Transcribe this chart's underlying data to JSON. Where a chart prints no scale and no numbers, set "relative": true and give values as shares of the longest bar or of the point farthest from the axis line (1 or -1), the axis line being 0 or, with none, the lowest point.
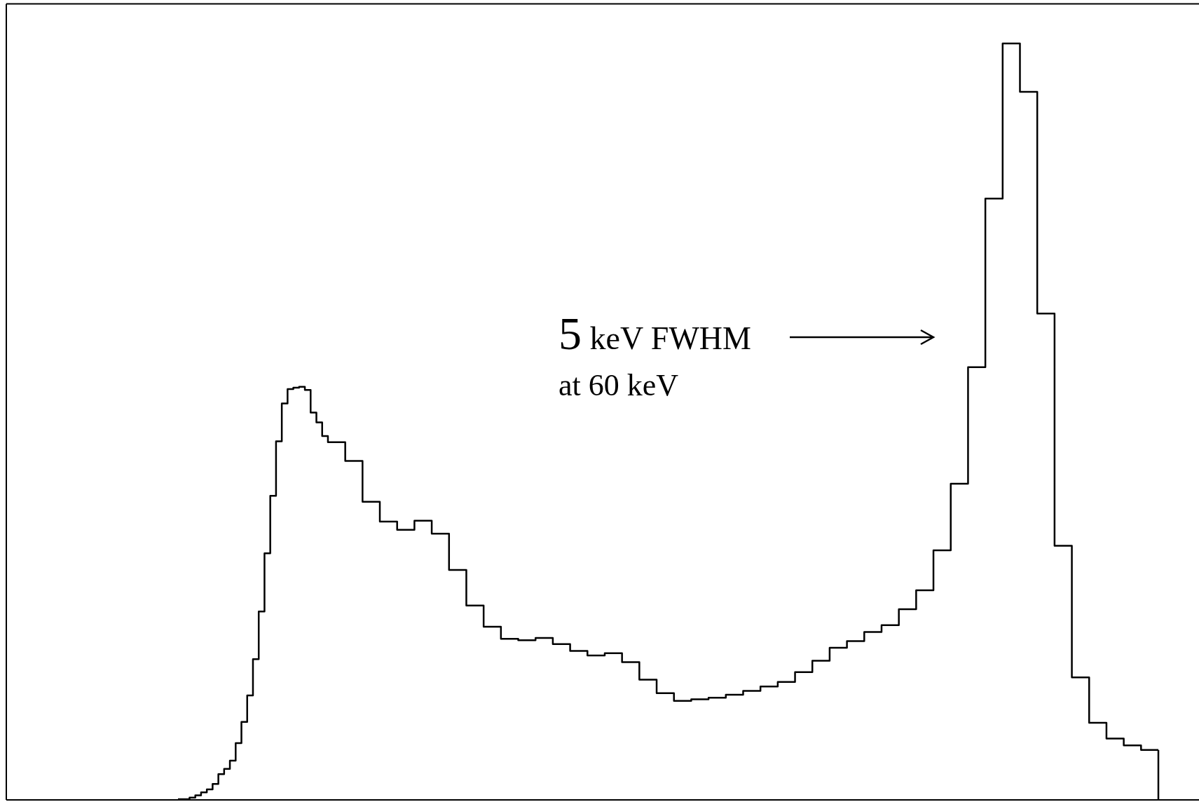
{
  "chart_data": {
    "type": "step",
    "relative": true,
    "color": "#000000",
    "categories": [
      null,
      null,
      null,
      null,
      null,
      null,
      null,
      null,
      null,
      null,
      null,
      null,
      null,
      null,
      null,
      null,
      null,
      null,
      null,
      null,
      null,
      null,
      null,
      null,
      null,
      null,
      null,
      null,
      null,
      null,
      null,
      null,
      null,
      null,
      null,
      null,
      null,
      null,
      null,
      null,
      null,
      null,
      null,
      null,
      null,
      null,
      null,
      null,
      null,
      null,
      null,
      null,
      null,
      null,
      null,
      null,
      null,
      null,
      null,
      null,
      null,
      null,
      null,
      null,
      null,
      null,
      null,
      null,
      null,
      null,
      null,
      null,
      null,
      null,
      null,
      null,
      null,
      null,
      null,
      null,
      null,
      null,
      null,
      null,
      null,
      null,
      null,
      null,
      null,
      null,
      null,
      null,
      null,
      null,
      null,
      null,
      null,
      null,
      null,
      null,
      null,
      null,
      null,
      null,
      null,
      null,
      null,
      null,
      null,
      null,
      null,
      null,
      null,
      null,
      null,
      null,
      null,
      null,
      null,
      null,
      null,
      null,
      null,
      null,
      null,
      null,
      null,
      null,
      null,
      null,
      null,
      null,
      null,
      null,
      null,
      null,
      null,
      null,
      null,
      null,
      null,
      null,
      null,
      null,
      null,
      null,
      null,
      null,
      null,
      null,
      null,
      null,
      null,
      null,
      null,
      null,
      null,
      null,
      null,
      null,
      null,
      null,
      null,
      null,
      null,
      null,
      null,
      null,
      null,
      null
    ],
    "values": [
      0.001,
      0.001,
      0.003,
      0.006,
      0.01,
      0.014,
      0.021,
      0.034,
      0.041,
      0.052,
      0.075,
      0.103,
      0.138,
      0.186,
      0.249,
      0.326,
      0.402,
      0.474,
      0.524,
      0.543,
      0.545,
      0.546,
      0.542,
      0.512,
      0.499,
      0.481,
      0.473,
      0.473,
      0.473,
      0.448,
      0.448,
      0.448,
      0.394,
      0.394,
      0.394,
      0.368,
      0.368,
      0.368,
      0.357,
      0.357,
      0.357,
      0.369,
      0.369,
      0.369,
      0.352,
      0.352,
      0.352,
      0.304,
      0.304,
      0.304,
      0.257,
      0.257,
      0.257,
      0.229,
      0.229,
      0.229,
      0.213,
      0.213,
      0.213,
      0.211,
      0.211,
      0.211,
      0.214,
      0.214,
      0.214,
      0.206,
      0.206,
      0.206,
      0.197,
      0.197,
      0.197,
      0.191,
      0.191,
      0.191,
      0.194,
      0.194,
      0.194,
      0.182,
      0.182,
      0.182,
      0.159,
      0.159,
      0.159,
      0.141,
      0.141,
      0.141,
      0.131,
      0.131,
      0.131,
      0.133,
      0.133,
      0.133,
      0.135,
      0.135,
      0.135,
      0.139,
      0.139,
      0.139,
      0.144,
      0.144,
      0.144,
      0.15,
      0.15,
      0.15,
      0.156,
      0.156,
      0.156,
      0.169,
      0.169,
      0.169,
      0.184,
      0.184,
      0.184,
      0.201,
      0.201,
      0.201,
      0.21,
      0.21,
      0.21,
      0.222,
      0.222,
      0.222,
      0.231,
      0.231,
      0.231,
      0.252,
      0.252,
      0.252,
      0.277,
      0.277,
      0.277,
      0.33,
      0.33,
      0.33,
      0.418,
      0.418,
      0.418,
      0.572,
      0.572,
      0.572,
      0.795,
      0.795,
      0.795,
      1,
      1,
      1,
      0.936,
      0.936,
      0.936,
      0.643,
      0.643,
      0.643,
      0.336,
      0.336,
      0.336,
      0.162,
      0.162,
      0.162,
      0.102,
      0.102,
      0.102,
      0.081,
      0.081,
      0.081,
      0.072,
      0.072,
      0.072,
      0.066,
      0.066,
      0.066
    ],
    "annotations": [
      "5 keV FWHM",
      "at 60 keV"
    ]
  }
}
